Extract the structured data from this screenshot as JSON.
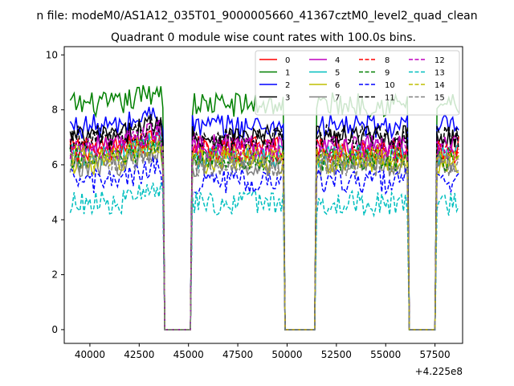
{
  "figure": {
    "suptitle": "n file: modeM0/AS1A12_035T01_9000005660_41367cztM0_level2_quad_clean"
  },
  "chart_data": {
    "type": "line",
    "title": "Quadrant 0 module wise count rates with 100.0s bins.",
    "xlabel": "",
    "ylabel": "",
    "x_offset_label": "+4.225e8",
    "xlim": [
      38700,
      58900
    ],
    "ylim": [
      -0.5,
      10.3
    ],
    "x_ticks": [
      40000,
      42500,
      45000,
      47500,
      50000,
      52500,
      55000,
      57500
    ],
    "x_tick_labels": [
      "40000",
      "42500",
      "45000",
      "47500",
      "50000",
      "52500",
      "55000",
      "57500"
    ],
    "y_ticks": [
      0,
      2,
      4,
      6,
      8,
      10
    ],
    "y_tick_labels": [
      "0",
      "2",
      "4",
      "6",
      "8",
      "10"
    ],
    "grid": false,
    "legend_position": "top-right",
    "segments": [
      {
        "start": 39000,
        "end": 43700
      },
      {
        "start": 45200,
        "end": 49800
      },
      {
        "start": 51500,
        "end": 56100
      },
      {
        "start": 57600,
        "end": 58700
      }
    ],
    "gap_value": 0,
    "series": [
      {
        "name": "0",
        "color": "#ff0000",
        "dash": "solid",
        "level": 6.6
      },
      {
        "name": "1",
        "color": "#008000",
        "dash": "solid",
        "level": 8.2
      },
      {
        "name": "2",
        "color": "#0000ff",
        "dash": "solid",
        "level": 7.4
      },
      {
        "name": "3",
        "color": "#000000",
        "dash": "solid",
        "level": 7.0
      },
      {
        "name": "4",
        "color": "#bf00bf",
        "dash": "solid",
        "level": 6.7
      },
      {
        "name": "5",
        "color": "#00bfbf",
        "dash": "solid",
        "level": 6.3
      },
      {
        "name": "6",
        "color": "#bfbf00",
        "dash": "solid",
        "level": 6.1
      },
      {
        "name": "7",
        "color": "#808080",
        "dash": "solid",
        "level": 6.0
      },
      {
        "name": "8",
        "color": "#ff0000",
        "dash": "dashed",
        "level": 6.5
      },
      {
        "name": "9",
        "color": "#008000",
        "dash": "dashed",
        "level": 6.2
      },
      {
        "name": "10",
        "color": "#0000ff",
        "dash": "dashed",
        "level": 5.4
      },
      {
        "name": "11",
        "color": "#000000",
        "dash": "dashed",
        "level": 7.0
      },
      {
        "name": "12",
        "color": "#bf00bf",
        "dash": "dashed",
        "level": 6.6
      },
      {
        "name": "13",
        "color": "#00bfbf",
        "dash": "dashed",
        "level": 4.6
      },
      {
        "name": "14",
        "color": "#bfbf00",
        "dash": "dashed",
        "level": 6.3
      },
      {
        "name": "15",
        "color": "#808080",
        "dash": "dashed",
        "level": 6.0
      }
    ]
  }
}
